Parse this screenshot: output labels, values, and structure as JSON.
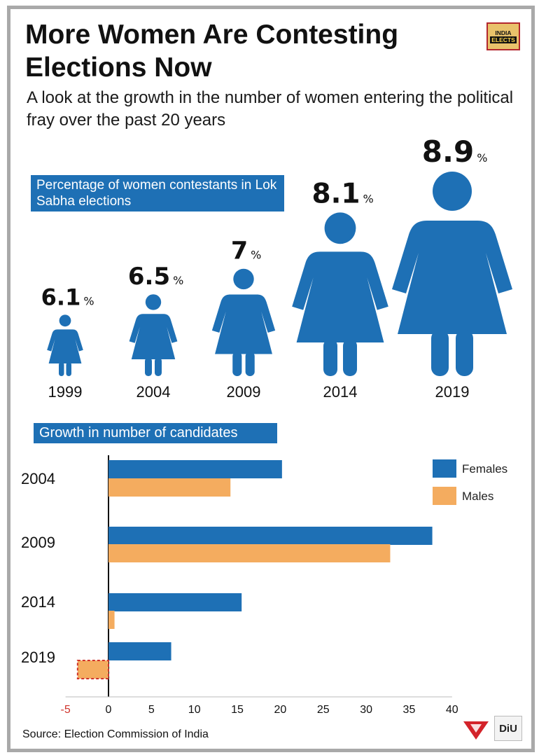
{
  "title": "More Women Are Contesting Elections Now",
  "subtitle": "A look at the growth in the number of women entering the political fray over the past 20 years",
  "badge": {
    "line1": "INDIA",
    "line2": "ELECTS"
  },
  "section1_label": "Percentage of women contestants in Lok Sabha elections",
  "section2_label": "Growth in number of candidates",
  "source": "Source: Election Commission of India",
  "brand_right": "DiU",
  "colors": {
    "blue": "#1e70b5",
    "orange": "#f4ac5f",
    "negative_tick": "#d0342c"
  },
  "chart_data": [
    {
      "type": "pictogram",
      "title": "Percentage of women contestants in Lok Sabha elections",
      "categories": [
        "1999",
        "2004",
        "2009",
        "2014",
        "2019"
      ],
      "values": [
        6.1,
        6.5,
        7,
        8.1,
        8.9
      ],
      "value_labels": [
        "6.1",
        "6.5",
        "7",
        "8.1",
        "8.9"
      ],
      "unit": "%"
    },
    {
      "type": "bar",
      "orientation": "horizontal",
      "title": "Growth in number of candidates",
      "categories": [
        "2004",
        "2009",
        "2014",
        "2019"
      ],
      "series": [
        {
          "name": "Females",
          "color": "#1e70b5",
          "values": [
            20.2,
            37.7,
            15.5,
            7.3
          ]
        },
        {
          "name": "Males",
          "color": "#f4ac5f",
          "values": [
            14.2,
            32.8,
            0.7,
            -3.6
          ]
        }
      ],
      "xlim": [
        -5,
        40
      ],
      "xticks": [
        -5,
        0,
        5,
        10,
        15,
        20,
        25,
        30,
        35,
        40
      ],
      "legend": "top-right",
      "grid": false
    }
  ]
}
